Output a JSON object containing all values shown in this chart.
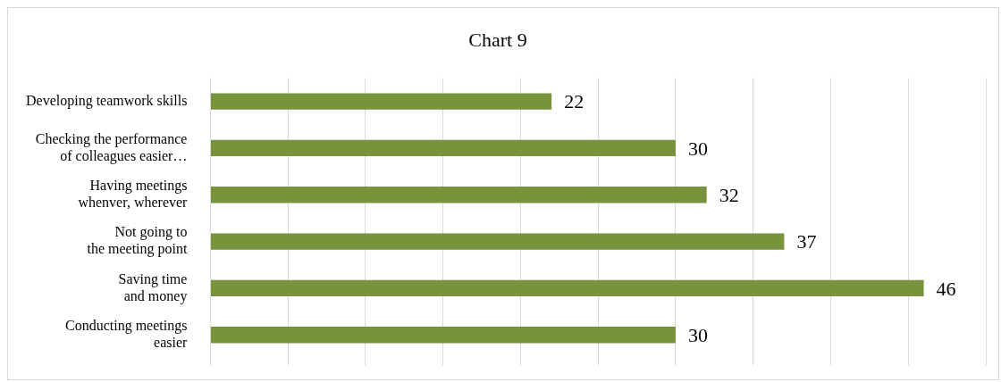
{
  "chart_data": {
    "type": "bar",
    "orientation": "horizontal",
    "title": "Chart 9",
    "categories": [
      "Developing teamwork skills",
      "Checking the performance\nof colleagues easier…",
      "Having meetings\nwhenver, wherever",
      "Not going to\nthe meeting point",
      "Saving time\nand money",
      "Conducting meetings\neasier"
    ],
    "values": [
      22,
      30,
      32,
      37,
      46,
      30
    ],
    "color": "#77933c",
    "xlim": [
      0,
      50
    ],
    "xticks": [
      {
        "value": 0,
        "label": null
      },
      {
        "value": 5,
        "label": null
      },
      {
        "value": 10,
        "label": null
      },
      {
        "value": 15,
        "label": null
      },
      {
        "value": 20,
        "label": null
      },
      {
        "value": 25,
        "label": null
      },
      {
        "value": 30,
        "label": null
      },
      {
        "value": 35,
        "label": null
      },
      {
        "value": 40,
        "label": null
      },
      {
        "value": 45,
        "label": null
      },
      {
        "value": 50,
        "label": null
      }
    ],
    "grid": "x",
    "tick_labels": "y",
    "data_labels": true,
    "legend": false
  }
}
